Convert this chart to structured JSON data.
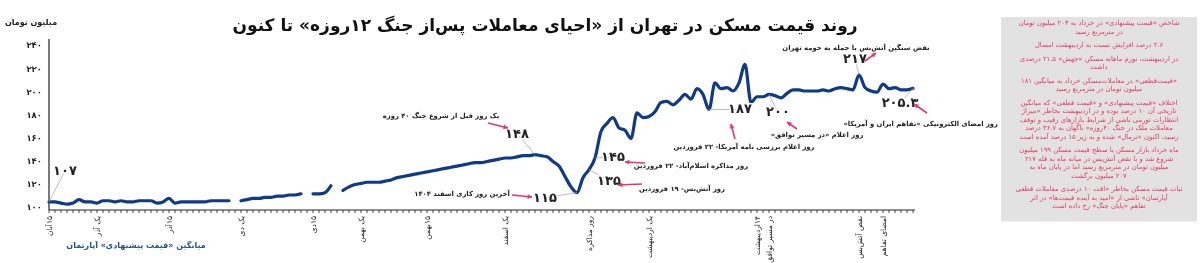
{
  "chart_data": {
    "type": "line",
    "title": "روند قیمت مسکن در تهران از «احیای معاملات پس‌از جنگ ۱۲روزه» تا کنون",
    "ylabel": "میلیون تومان",
    "categories": [
      "۱۵آبان",
      null,
      null,
      null,
      null,
      null,
      null,
      null,
      "یک آذر",
      null,
      null,
      null,
      null,
      null,
      null,
      null,
      null,
      null,
      null,
      null,
      "۱۵آذر",
      null,
      null,
      null,
      null,
      null,
      null,
      null,
      null,
      null,
      null,
      null,
      "یک دی",
      null,
      null,
      null,
      null,
      null,
      null,
      null,
      null,
      null,
      null,
      null,
      "۱۵دی",
      null,
      null,
      null,
      null,
      null,
      null,
      null,
      "یک بهمن",
      null,
      null,
      null,
      null,
      null,
      null,
      null,
      null,
      null,
      null,
      "۱۵بهمن",
      null,
      null,
      null,
      null,
      null,
      null,
      null,
      null,
      null,
      null,
      null,
      null,
      "یک اسفند",
      null,
      null,
      null,
      null,
      null,
      null,
      null,
      null,
      null,
      null,
      null,
      null,
      null,
      "روز مذاکره",
      null,
      null,
      null,
      null,
      null,
      null,
      null,
      null,
      null,
      "یک اردیبهشت",
      null,
      null,
      null,
      null,
      null,
      null,
      null,
      null,
      null,
      null,
      null,
      null,
      null,
      null,
      null,
      null,
      null,
      "۱۴اردیبهشت",
      null,
      "در مسیر توافق",
      null,
      null,
      null,
      null,
      null,
      null,
      null,
      null,
      null,
      null,
      null,
      null,
      null,
      null,
      "نقض آتش‌بس",
      null,
      null,
      null,
      "امضای تفاهم",
      null,
      null,
      null,
      null,
      null
    ],
    "series": [
      {
        "color": "#0d3b8a",
        "values": [
          107,
          107,
          106,
          105,
          106,
          109,
          107,
          107,
          106,
          108,
          108,
          107,
          108,
          107,
          107,
          108,
          108,
          108,
          106,
          107,
          110,
          106,
          107,
          107,
          107,
          107,
          107,
          108,
          108,
          108,
          108,
          null,
          108,
          109,
          110,
          110,
          111,
          111,
          112,
          112,
          113,
          113,
          114,
          null,
          114,
          114,
          115,
          121,
          null,
          117,
          120,
          122,
          123,
          124,
          124,
          124,
          125,
          126,
          128,
          129,
          130,
          131,
          132,
          133,
          134,
          135,
          136,
          137,
          138,
          139,
          140,
          141,
          141,
          142,
          143,
          144,
          145,
          145,
          146,
          147,
          147,
          148,
          147,
          146,
          142,
          138,
          129,
          120,
          115,
          128,
          135,
          145,
          168,
          175,
          180,
          171,
          169,
          162,
          184,
          180,
          181,
          185,
          193,
          194,
          191,
          195,
          200,
          196,
          205,
          200,
          187,
          210,
          205,
          206,
          203,
          210,
          226,
          193,
          198,
          198,
          200,
          199,
          197,
          201,
          204,
          204,
          203,
          203,
          203,
          204,
          203,
          205,
          206,
          205,
          204,
          217,
          206,
          203,
          202,
          209,
          205,
          206,
          204,
          204,
          205.3
        ],
        "value_labels": [
          "۱۰۷",
          null,
          null,
          null,
          null,
          null,
          null,
          null,
          null,
          null,
          null,
          null,
          null,
          null,
          null,
          null,
          null,
          null,
          null,
          null,
          null,
          null,
          null,
          null,
          null,
          null,
          null,
          null,
          null,
          null,
          null,
          null,
          null,
          null,
          null,
          null,
          null,
          null,
          null,
          null,
          null,
          null,
          null,
          null,
          null,
          null,
          null,
          null,
          null,
          null,
          null,
          null,
          null,
          null,
          null,
          null,
          null,
          null,
          null,
          null,
          null,
          null,
          null,
          null,
          null,
          null,
          null,
          null,
          null,
          null,
          null,
          null,
          null,
          null,
          null,
          null,
          null,
          null,
          null,
          null,
          null,
          "۱۴۸",
          null,
          null,
          null,
          null,
          null,
          null,
          "۱۱۵",
          null,
          "۱۳۵",
          "۱۴۵",
          null,
          null,
          null,
          null,
          null,
          null,
          null,
          null,
          null,
          null,
          null,
          null,
          null,
          null,
          null,
          null,
          null,
          null,
          "۱۸۷",
          null,
          null,
          null,
          null,
          null,
          null,
          null,
          null,
          null,
          "۲۰۰",
          null,
          null,
          null,
          null,
          null,
          null,
          null,
          null,
          null,
          null,
          null,
          null,
          null,
          null,
          "۲۱۷",
          null,
          null,
          null,
          null,
          null,
          null,
          null,
          null,
          "۲۰۵.۳"
        ]
      }
    ],
    "ylim": [
      100,
      248
    ],
    "yticks": [
      {
        "value": 100,
        "label": "۱۰۰"
      },
      {
        "value": 120,
        "label": "۱۲۰"
      },
      {
        "value": 140,
        "label": "۱۴۰"
      },
      {
        "value": 160,
        "label": "۱۶۰"
      },
      {
        "value": 180,
        "label": "۱۸۰"
      },
      {
        "value": 200,
        "label": "۲۰۰"
      },
      {
        "value": 220,
        "label": "۲۲۰"
      },
      {
        "value": 240,
        "label": "۲۴۰"
      }
    ],
    "annotations": [
      "یک روز قبل از شروع جنگ ۴۰ روزه",
      "آخرین روز کاری اسفند ۱۴۰۴",
      "روز مذاکره اسلام‌آباد- ۲۲ فروردین",
      "روز آتش‌بس- ۱۹ فروردین",
      "روز اعلام بررسی نامه آمریکا- ۲۲ فروردین",
      "روز اعلام «در مسیر توافق»",
      "نقض سنگین آتش‌بس با حمله به حومه تهران",
      "روز امضای الکترونیکی «تفاهم ایران و آمریکا»",
      "شاخص «قیمت پیشنهادی» در خرداد به ۲۰۴ میلیون تومان در مترمربع رسید",
      "۲.۶ درصد افزایش نسبت به اردیبهشت امسال",
      "در اردیبهشت، تورم ماهانه مسکن «جهش» ۲۱.۵ درصدی داشت",
      "«قیمت‌قطعی» در معاملات‌مسکن خرداد\nبه میانگین ۱۸۱ میلیون تومان در مترمربع رسید",
      "اختلاف «قیمت پیشنهادی» و «قیمت قطعی» که میانگین تاریخی آن ۱۰ درصد\nبوده و در اردیبهشت بخاطر «میراژ انتظارات تورمی ناشی از شرایط بازارهای\nرقیب و توقف معاملات ملک در جنگ ۴۰روزه» ناگهان به ۳۶.۷ درصد رسید،\nاکنون «نرمال» شده و به زیر ۱۵ درصد آمده است",
      "ماه خرداد بازار مسکن با سطح قیمت مسکن ۱۹۹ میلیون شروع شد و با\nنقض آتش‌بس در میانه ماه به قله ۲۱۷ میلیون تومان در مترمربع رسید اما\nدر پایان ماه به ۲۰۷ میلیون برگشت",
      "ثبات قیمت مسکن بخاطر «افت ۱۰ درصدی معاملات قطعی آپارتمان» ناشی از\n«امید به آینده قیمت‌ها» در اثر تفاهم «پایان جنگ» رخ داده است",
      "میانگین «قیمت پیشنهادی» آپارتمان"
    ]
  }
}
